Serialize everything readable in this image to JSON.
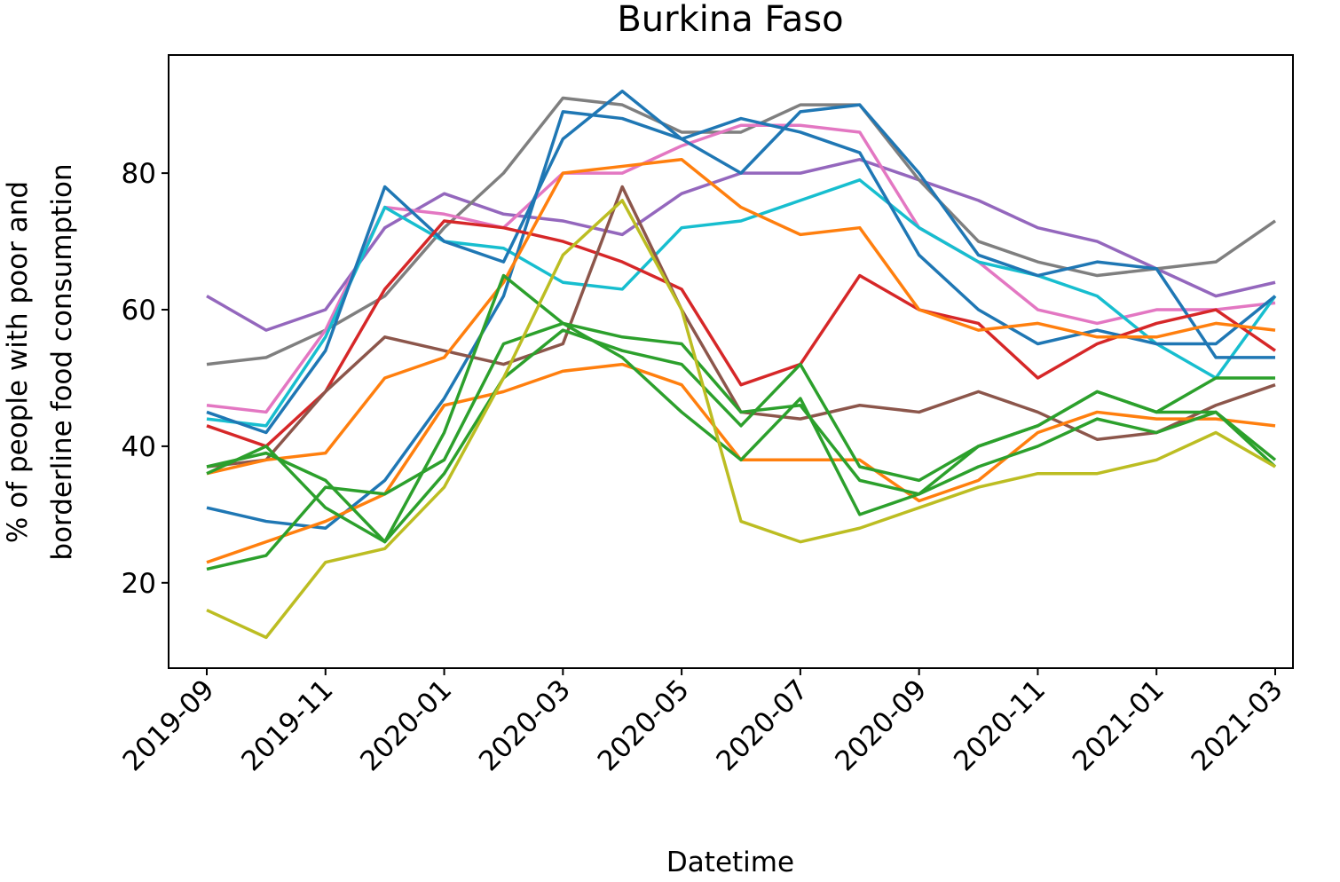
{
  "chart_data": {
    "type": "line",
    "title": "Burkina Faso",
    "xlabel": "Datetime",
    "ylabel": [
      "% of people with poor and",
      "borderline food consumption"
    ],
    "x": [
      "2019-09",
      "2019-10",
      "2019-11",
      "2019-12",
      "2020-01",
      "2020-02",
      "2020-03",
      "2020-04",
      "2020-05",
      "2020-06",
      "2020-07",
      "2020-08",
      "2020-09",
      "2020-10",
      "2020-11",
      "2020-12",
      "2021-01",
      "2021-02",
      "2021-03"
    ],
    "xlim": [
      "2019-09",
      "2021-03"
    ],
    "xticks": [
      "2019-09",
      "2019-11",
      "2020-01",
      "2020-03",
      "2020-05",
      "2020-07",
      "2020-09",
      "2020-11",
      "2021-01",
      "2021-03"
    ],
    "ylim": [
      7.5,
      97.3
    ],
    "yticks": [
      20,
      40,
      60,
      80
    ],
    "grid": false,
    "series": [
      {
        "color": "#9467bd",
        "values": [
          62,
          57,
          60,
          72,
          77,
          74,
          73,
          71,
          77,
          80,
          80,
          82,
          79,
          76,
          72,
          70,
          66,
          62,
          64
        ]
      },
      {
        "color": "#7f7f7f",
        "values": [
          52,
          53,
          57,
          62,
          72,
          80,
          91,
          90,
          86,
          86,
          90,
          90,
          79,
          70,
          67,
          65,
          66,
          67,
          73
        ]
      },
      {
        "color": "#e377c2",
        "values": [
          46,
          45,
          57,
          75,
          74,
          72,
          80,
          80,
          84,
          87,
          87,
          86,
          72,
          67,
          60,
          58,
          60,
          60,
          61
        ]
      },
      {
        "color": "#17becf",
        "values": [
          44,
          43,
          56,
          75,
          70,
          69,
          64,
          63,
          72,
          73,
          76,
          79,
          72,
          67,
          65,
          62,
          55,
          50,
          62
        ]
      },
      {
        "color": "#1f77b4",
        "values": [
          45,
          42,
          54,
          78,
          70,
          67,
          85,
          92,
          85,
          80,
          89,
          90,
          80,
          68,
          65,
          67,
          66,
          53,
          53
        ]
      },
      {
        "color": "#1f77b4",
        "values": [
          31,
          29,
          28,
          35,
          47,
          62,
          89,
          88,
          85,
          88,
          86,
          83,
          68,
          60,
          55,
          57,
          55,
          55,
          62
        ]
      },
      {
        "color": "#d62728",
        "values": [
          43,
          40,
          48,
          63,
          73,
          72,
          70,
          67,
          63,
          49,
          52,
          65,
          60,
          58,
          50,
          55,
          58,
          60,
          54
        ]
      },
      {
        "color": "#8c564b",
        "values": [
          37,
          38,
          48,
          56,
          54,
          52,
          55,
          78,
          60,
          45,
          44,
          46,
          45,
          48,
          45,
          41,
          42,
          46,
          49
        ]
      },
      {
        "color": "#ff7f0e",
        "values": [
          36,
          38,
          39,
          50,
          53,
          64,
          80,
          81,
          82,
          75,
          71,
          72,
          60,
          57,
          58,
          56,
          56,
          58,
          57
        ]
      },
      {
        "color": "#ff7f0e",
        "values": [
          23,
          26,
          29,
          33,
          46,
          48,
          51,
          52,
          49,
          38,
          38,
          38,
          32,
          35,
          42,
          45,
          44,
          44,
          43
        ]
      },
      {
        "color": "#2ca02c",
        "values": [
          37,
          39,
          35,
          26,
          42,
          65,
          58,
          56,
          55,
          45,
          46,
          35,
          33,
          40,
          43,
          48,
          45,
          45,
          38
        ]
      },
      {
        "color": "#2ca02c",
        "values": [
          22,
          24,
          34,
          33,
          38,
          55,
          58,
          53,
          45,
          38,
          47,
          30,
          33,
          37,
          40,
          44,
          42,
          45,
          37
        ]
      },
      {
        "color": "#2ca02c",
        "values": [
          36,
          40,
          31,
          26,
          36,
          50,
          57,
          54,
          52,
          43,
          52,
          37,
          35,
          40,
          43,
          48,
          45,
          50,
          50
        ]
      },
      {
        "color": "#bcbd22",
        "values": [
          16,
          12,
          23,
          25,
          34,
          50,
          68,
          76,
          60,
          29,
          26,
          28,
          31,
          34,
          36,
          36,
          38,
          42,
          37
        ]
      }
    ]
  }
}
